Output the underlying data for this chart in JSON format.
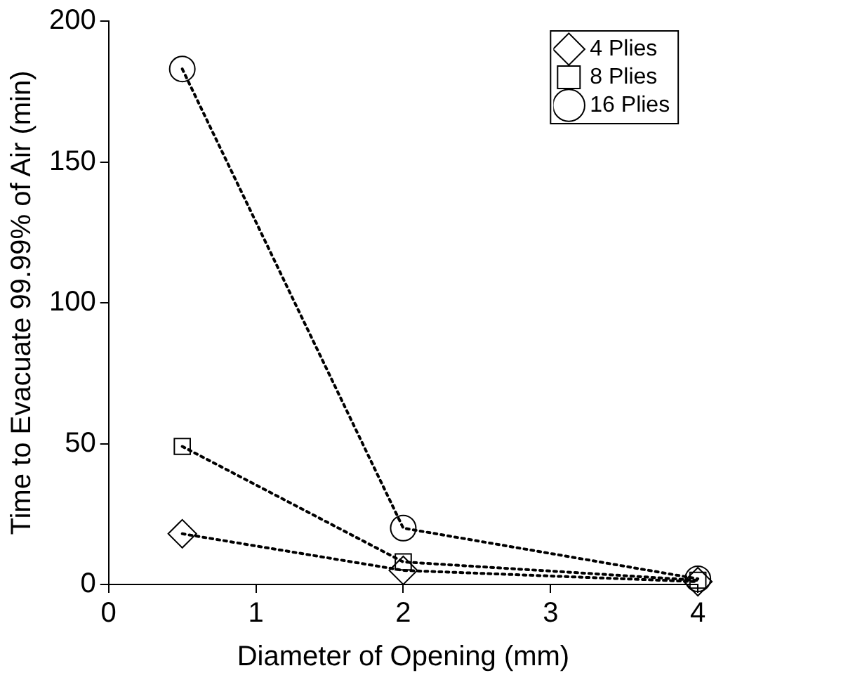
{
  "chart_data": {
    "type": "line",
    "xlabel": "Diameter of Opening (mm)",
    "ylabel": "Time to Evacuate 99.99% of Air (min)",
    "x": [
      0.5,
      2,
      4
    ],
    "series": [
      {
        "name": "4 Plies",
        "color": "#000000",
        "marker": "diamond",
        "values": [
          18,
          5,
          1
        ]
      },
      {
        "name": "8 Plies",
        "color": "#000000",
        "marker": "square",
        "values": [
          49,
          8,
          1.5
        ]
      },
      {
        "name": "16 Plies",
        "color": "#000000",
        "marker": "circle",
        "values": [
          183,
          20,
          2
        ]
      }
    ],
    "xlim": [
      0,
      4
    ],
    "xticks": [
      0,
      1,
      2,
      3,
      4
    ],
    "ylim": [
      0,
      200
    ],
    "yticks": [
      0,
      50,
      100,
      150,
      200
    ],
    "grid": false,
    "legend": "top right",
    "line_style": "dotted"
  }
}
